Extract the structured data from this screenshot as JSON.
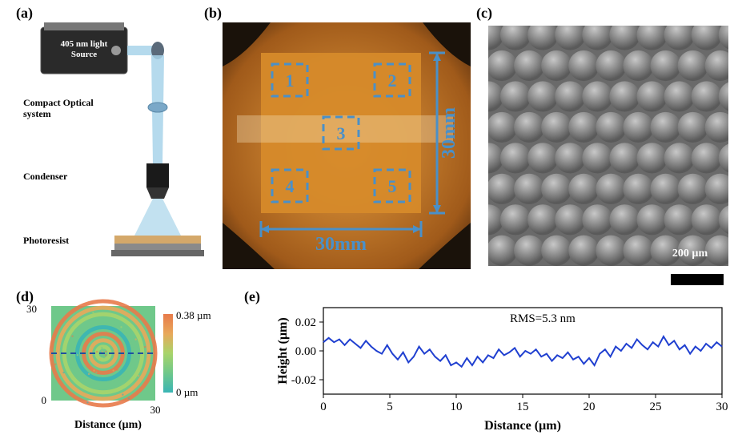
{
  "panels": {
    "a": {
      "label": "(a)",
      "fontsize": 18
    },
    "b": {
      "label": "(b)",
      "fontsize": 18
    },
    "c": {
      "label": "(c)",
      "fontsize": 18
    },
    "d": {
      "label": "(d)",
      "fontsize": 18
    },
    "e": {
      "label": "(e)",
      "fontsize": 18
    }
  },
  "panel_a": {
    "light_source_text": "405 nm light\nSource",
    "optical_system_text": "Compact Optical\nsystem",
    "condenser_text": "Condenser",
    "photoresist_text": "Photoresist",
    "label_fontsize": 12,
    "source_label_fontsize": 11,
    "beam_color": "#a8d4ea",
    "source_body_color": "#2a2a2a",
    "condenser_color": "#1a1a1a",
    "photoresist_color": "#d4a86a",
    "substrate_color": "#8a8a8a"
  },
  "panel_b": {
    "width_label": "30mm",
    "height_label": "30mm",
    "region_labels": [
      "1",
      "2",
      "3",
      "4",
      "5"
    ],
    "label_color": "#4a90c8",
    "label_fontsize": 22,
    "dim_fontsize": 24,
    "sample_color": "#d68a2a",
    "bg_color": "#a05a1a",
    "box_stroke": "#4a90c8"
  },
  "panel_c": {
    "scale_label": "200 µm",
    "scale_label_color": "#ffffff",
    "scale_label_fontsize": 14,
    "rows": 8,
    "cols": 9,
    "dome_light": "#c8c8c8",
    "dome_dark": "#5a5a5a",
    "bg": "#6a6a6a"
  },
  "panel_d": {
    "xlabel": "Distance (µm)",
    "ylabel_low": "0",
    "ylabel_high": "30",
    "colorbar_high": "0.38 µm",
    "colorbar_low": "0 µm",
    "label_fontsize": 14,
    "tick_fontsize": 13,
    "colors": [
      "#3ab5b5",
      "#6fc88a",
      "#a8d46a",
      "#e8a85a",
      "#e87a4a"
    ],
    "ring_count": 8
  },
  "panel_e": {
    "xlabel": "Distance (µm)",
    "ylabel": "Height (µm)",
    "xlim": [
      0,
      30
    ],
    "ylim": [
      -0.03,
      0.03
    ],
    "xticks": [
      0,
      5,
      10,
      15,
      20,
      25,
      30
    ],
    "yticks": [
      -0.02,
      0.0,
      0.02
    ],
    "rms_label": "RMS=5.3 nm",
    "label_fontsize": 16,
    "tick_fontsize": 15,
    "line_color": "#2040d0",
    "line_width": 2,
    "data": [
      [
        0,
        0.006
      ],
      [
        0.4,
        0.009
      ],
      [
        0.8,
        0.006
      ],
      [
        1.2,
        0.008
      ],
      [
        1.6,
        0.004
      ],
      [
        2,
        0.008
      ],
      [
        2.4,
        0.005
      ],
      [
        2.8,
        0.002
      ],
      [
        3.2,
        0.007
      ],
      [
        3.6,
        0.003
      ],
      [
        4,
        0
      ],
      [
        4.4,
        -0.002
      ],
      [
        4.8,
        0.004
      ],
      [
        5.2,
        -0.002
      ],
      [
        5.6,
        -0.006
      ],
      [
        6,
        -0.001
      ],
      [
        6.4,
        -0.008
      ],
      [
        6.8,
        -0.004
      ],
      [
        7.2,
        0.003
      ],
      [
        7.6,
        -0.002
      ],
      [
        8,
        0.001
      ],
      [
        8.4,
        -0.004
      ],
      [
        8.8,
        -0.007
      ],
      [
        9.2,
        -0.003
      ],
      [
        9.6,
        -0.01
      ],
      [
        10,
        -0.008
      ],
      [
        10.4,
        -0.011
      ],
      [
        10.8,
        -0.005
      ],
      [
        11.2,
        -0.01
      ],
      [
        11.6,
        -0.004
      ],
      [
        12,
        -0.008
      ],
      [
        12.4,
        -0.003
      ],
      [
        12.8,
        -0.005
      ],
      [
        13.2,
        0.001
      ],
      [
        13.6,
        -0.003
      ],
      [
        14,
        -0.001
      ],
      [
        14.4,
        0.002
      ],
      [
        14.8,
        -0.004
      ],
      [
        15.2,
        0
      ],
      [
        15.6,
        -0.002
      ],
      [
        16,
        0.001
      ],
      [
        16.4,
        -0.004
      ],
      [
        16.8,
        -0.002
      ],
      [
        17.2,
        -0.007
      ],
      [
        17.6,
        -0.003
      ],
      [
        18,
        -0.005
      ],
      [
        18.4,
        -0.001
      ],
      [
        18.8,
        -0.006
      ],
      [
        19.2,
        -0.004
      ],
      [
        19.6,
        -0.009
      ],
      [
        20,
        -0.005
      ],
      [
        20.4,
        -0.01
      ],
      [
        20.8,
        -0.002
      ],
      [
        21.2,
        0.001
      ],
      [
        21.6,
        -0.004
      ],
      [
        22,
        0.003
      ],
      [
        22.4,
        0
      ],
      [
        22.8,
        0.005
      ],
      [
        23.2,
        0.002
      ],
      [
        23.6,
        0.008
      ],
      [
        24,
        0.004
      ],
      [
        24.4,
        0.001
      ],
      [
        24.8,
        0.006
      ],
      [
        25.2,
        0.003
      ],
      [
        25.6,
        0.01
      ],
      [
        26,
        0.004
      ],
      [
        26.4,
        0.007
      ],
      [
        26.8,
        0.001
      ],
      [
        27.2,
        0.004
      ],
      [
        27.6,
        -0.002
      ],
      [
        28,
        0.003
      ],
      [
        28.4,
        0
      ],
      [
        28.8,
        0.005
      ],
      [
        29.2,
        0.002
      ],
      [
        29.6,
        0.006
      ],
      [
        30,
        0.003
      ]
    ]
  }
}
